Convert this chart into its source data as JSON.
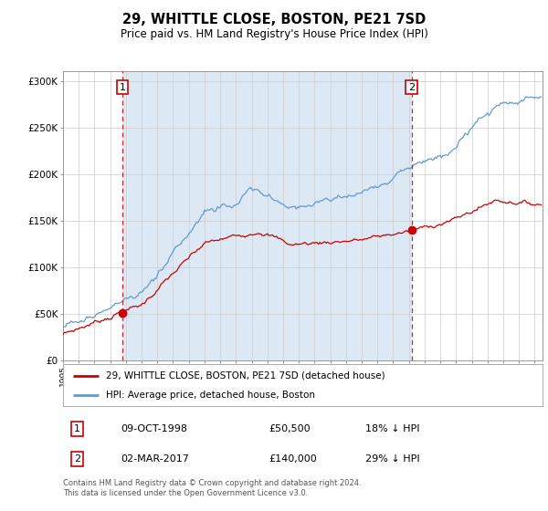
{
  "title": "29, WHITTLE CLOSE, BOSTON, PE21 7SD",
  "subtitle": "Price paid vs. HM Land Registry's House Price Index (HPI)",
  "legend_label_red": "29, WHITTLE CLOSE, BOSTON, PE21 7SD (detached house)",
  "legend_label_blue": "HPI: Average price, detached house, Boston",
  "purchase1_date": "09-OCT-1998",
  "purchase1_price": "£50,500",
  "purchase1_hpi": "18% ↓ HPI",
  "purchase1_year": 1998.77,
  "purchase1_value": 50500,
  "purchase2_date": "02-MAR-2017",
  "purchase2_price": "£140,000",
  "purchase2_hpi": "29% ↓ HPI",
  "purchase2_year": 2017.17,
  "purchase2_value": 140000,
  "footer": "Contains HM Land Registry data © Crown copyright and database right 2024.\nThis data is licensed under the Open Government Licence v3.0.",
  "ylim": [
    0,
    310000
  ],
  "xlim_start": 1995.0,
  "xlim_end": 2025.5,
  "red_color": "#cc0000",
  "blue_color": "#6699cc",
  "fill_color": "#dde8f5",
  "background_color": "#ffffff",
  "grid_color": "#cccccc"
}
